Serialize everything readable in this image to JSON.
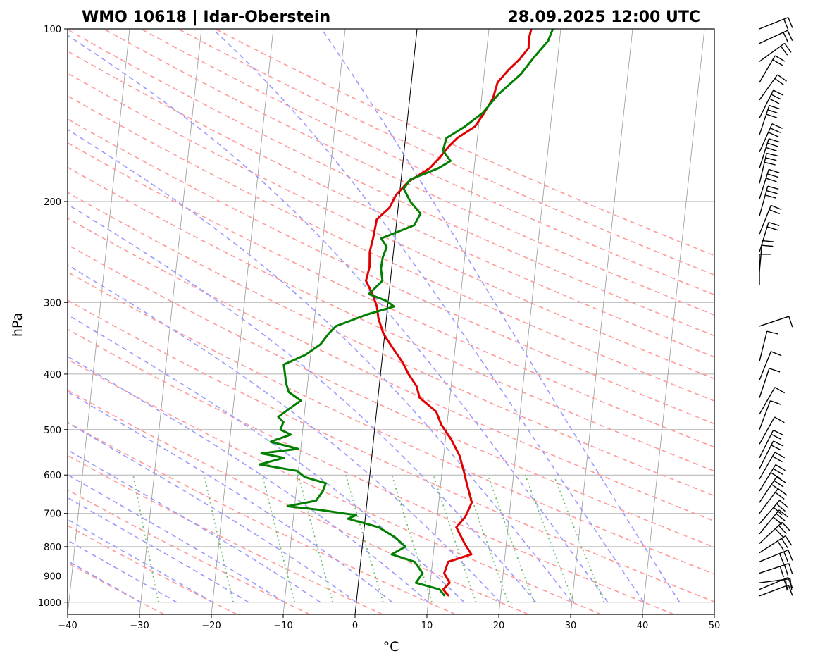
{
  "chart_data": {
    "type": "line",
    "chart_kind": "skew-t log-p",
    "title_left": "WMO 10618 | Idar-Oberstein",
    "title_right": "28.09.2025 12:00 UTC",
    "xlabel": "°C",
    "ylabel": "hPa",
    "xlim": [
      -40,
      50
    ],
    "ylim": [
      1050,
      100
    ],
    "y_scale": "log",
    "x_ticks": [
      -40,
      -30,
      -20,
      -10,
      0,
      10,
      20,
      30,
      40,
      50
    ],
    "y_ticks": [
      1000,
      900,
      800,
      700,
      600,
      500,
      400,
      300,
      200,
      100
    ],
    "grid": true,
    "colors": {
      "temperature": "#e00000",
      "dewpoint": "#007f00",
      "dry_adiabat": "#ff9a9a",
      "moist_adiabat": "#9a9aff",
      "mixing_ratio": "#6cbf6c",
      "isotherm": "#8c8c8c",
      "grid": "#b0b0b0",
      "zero_isotherm": "#000000"
    },
    "series": [
      {
        "key": "temperature",
        "points": [
          [
            12.8,
            975
          ],
          [
            12.4,
            965
          ],
          [
            11.9,
            950
          ],
          [
            12.7,
            925
          ],
          [
            11.8,
            890
          ],
          [
            12.2,
            850
          ],
          [
            15.3,
            825
          ],
          [
            14.2,
            790
          ],
          [
            12.8,
            740
          ],
          [
            13.9,
            710
          ],
          [
            14.6,
            670
          ],
          [
            13.7,
            625
          ],
          [
            13.0,
            590
          ],
          [
            12.2,
            555
          ],
          [
            10.8,
            520
          ],
          [
            9.2,
            490
          ],
          [
            8.3,
            465
          ],
          [
            5.8,
            440
          ],
          [
            5.2,
            420
          ],
          [
            3.9,
            400
          ],
          [
            2.8,
            380
          ],
          [
            1.3,
            360
          ],
          [
            -0.2,
            340
          ],
          [
            -1.1,
            320
          ],
          [
            -1.5,
            305
          ],
          [
            -2.3,
            290
          ],
          [
            -3.4,
            275
          ],
          [
            -3.1,
            260
          ],
          [
            -3.3,
            245
          ],
          [
            -3.0,
            230
          ],
          [
            -2.8,
            215
          ],
          [
            -1.2,
            205
          ],
          [
            -0.5,
            195
          ],
          [
            1.0,
            185
          ],
          [
            3.8,
            175
          ],
          [
            5.0,
            168
          ],
          [
            6.2,
            160
          ],
          [
            7.2,
            155
          ],
          [
            9.5,
            148
          ],
          [
            10.6,
            140
          ],
          [
            11.6,
            132
          ],
          [
            12.0,
            124
          ],
          [
            13.3,
            118
          ],
          [
            14.7,
            113
          ],
          [
            15.8,
            108
          ],
          [
            15.7,
            104
          ],
          [
            15.9,
            100
          ]
        ]
      },
      {
        "key": "dewpoint",
        "points": [
          [
            12.2,
            975
          ],
          [
            11.4,
            950
          ],
          [
            8.0,
            925
          ],
          [
            8.8,
            890
          ],
          [
            7.5,
            850
          ],
          [
            4.2,
            825
          ],
          [
            6.0,
            800
          ],
          [
            4.4,
            770
          ],
          [
            2.0,
            740
          ],
          [
            -2.4,
            715
          ],
          [
            -1.3,
            705
          ],
          [
            -6.5,
            690
          ],
          [
            -11.0,
            680
          ],
          [
            -7.1,
            665
          ],
          [
            -6.3,
            640
          ],
          [
            -6.0,
            620
          ],
          [
            -9.0,
            605
          ],
          [
            -10.2,
            590
          ],
          [
            -15.5,
            575
          ],
          [
            -12.2,
            560
          ],
          [
            -15.4,
            550
          ],
          [
            -10.4,
            540
          ],
          [
            -14.3,
            525
          ],
          [
            -11.6,
            510
          ],
          [
            -13.1,
            500
          ],
          [
            -12.8,
            485
          ],
          [
            -13.6,
            475
          ],
          [
            -12.2,
            460
          ],
          [
            -10.7,
            445
          ],
          [
            -12.5,
            430
          ],
          [
            -13.0,
            415
          ],
          [
            -13.3,
            400
          ],
          [
            -13.6,
            385
          ],
          [
            -10.7,
            370
          ],
          [
            -8.8,
            355
          ],
          [
            -7.8,
            340
          ],
          [
            -6.9,
            330
          ],
          [
            -2.8,
            315
          ],
          [
            0.9,
            305
          ],
          [
            -0.3,
            298
          ],
          [
            -2.8,
            290
          ],
          [
            -1.1,
            275
          ],
          [
            -1.5,
            262
          ],
          [
            -1.4,
            250
          ],
          [
            -1.0,
            240
          ],
          [
            -1.9,
            232
          ],
          [
            2.5,
            220
          ],
          [
            3.2,
            210
          ],
          [
            1.6,
            200
          ],
          [
            0.5,
            190
          ],
          [
            1.3,
            183
          ],
          [
            5.0,
            175
          ],
          [
            6.6,
            170
          ],
          [
            5.4,
            163
          ],
          [
            5.7,
            155
          ],
          [
            8.1,
            148
          ],
          [
            10.4,
            140
          ],
          [
            12.3,
            130
          ],
          [
            15.1,
            120
          ],
          [
            16.7,
            112
          ],
          [
            18.4,
            105
          ],
          [
            18.9,
            100
          ]
        ]
      }
    ],
    "wind_barbs": [
      {
        "p": 975,
        "u": 0.8,
        "v": 0.3
      },
      {
        "p": 950,
        "u": 1.2,
        "v": 0.5
      },
      {
        "p": 925,
        "u": 1.5,
        "v": 0.2
      },
      {
        "p": 890,
        "u": 1.8,
        "v": 0.6
      },
      {
        "p": 850,
        "u": 2.2,
        "v": 0.9
      },
      {
        "p": 820,
        "u": 2.0,
        "v": 1.3
      },
      {
        "p": 790,
        "u": 1.6,
        "v": 1.5
      },
      {
        "p": 760,
        "u": 1.4,
        "v": 1.7
      },
      {
        "p": 730,
        "u": 1.2,
        "v": 1.4
      },
      {
        "p": 700,
        "u": 0.9,
        "v": 1.2
      },
      {
        "p": 670,
        "u": 1.0,
        "v": 1.5
      },
      {
        "p": 640,
        "u": 1.1,
        "v": 1.8
      },
      {
        "p": 610,
        "u": 0.8,
        "v": 1.4
      },
      {
        "p": 585,
        "u": 0.6,
        "v": 1.2
      },
      {
        "p": 560,
        "u": 0.5,
        "v": 1.0
      },
      {
        "p": 530,
        "u": 0.5,
        "v": 0.9
      },
      {
        "p": 500,
        "u": 0.3,
        "v": 0.8
      },
      {
        "p": 470,
        "u": 0.4,
        "v": 0.7
      },
      {
        "p": 440,
        "u": 0.2,
        "v": 0.6
      },
      {
        "p": 410,
        "u": 0.2,
        "v": 0.5
      },
      {
        "p": 380,
        "u": 0.1,
        "v": 0.4
      },
      {
        "p": 330,
        "u": 0.6,
        "v": 0.2
      },
      {
        "p": 280,
        "u": 0.0,
        "v": 0.9
      },
      {
        "p": 265,
        "u": 0.1,
        "v": 1.1
      },
      {
        "p": 245,
        "u": 0.4,
        "v": 1.3
      },
      {
        "p": 228,
        "u": 0.6,
        "v": 1.5
      },
      {
        "p": 212,
        "u": 0.5,
        "v": 1.8
      },
      {
        "p": 198,
        "u": 0.6,
        "v": 1.9
      },
      {
        "p": 186,
        "u": 0.5,
        "v": 2.1
      },
      {
        "p": 175,
        "u": 0.7,
        "v": 2.2
      },
      {
        "p": 164,
        "u": 0.9,
        "v": 2.0
      },
      {
        "p": 153,
        "u": 0.6,
        "v": 1.8
      },
      {
        "p": 143,
        "u": 0.8,
        "v": 1.6
      },
      {
        "p": 133,
        "u": 1.0,
        "v": 1.4
      },
      {
        "p": 124,
        "u": 0.7,
        "v": 1.2
      },
      {
        "p": 114,
        "u": 1.1,
        "v": 0.8
      },
      {
        "p": 106,
        "u": 1.3,
        "v": 0.6
      },
      {
        "p": 100,
        "u": 1.0,
        "v": 0.4
      }
    ]
  }
}
